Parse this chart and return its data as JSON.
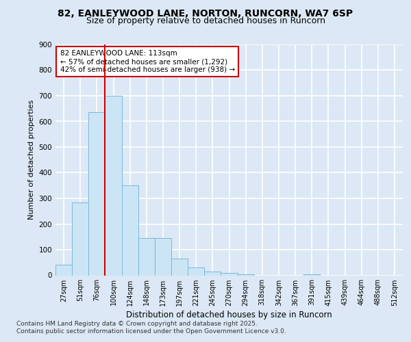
{
  "title_line1": "82, EANLEYWOOD LANE, NORTON, RUNCORN, WA7 6SP",
  "title_line2": "Size of property relative to detached houses in Runcorn",
  "xlabel": "Distribution of detached houses by size in Runcorn",
  "ylabel": "Number of detached properties",
  "categories": [
    "27sqm",
    "51sqm",
    "76sqm",
    "100sqm",
    "124sqm",
    "148sqm",
    "173sqm",
    "197sqm",
    "221sqm",
    "245sqm",
    "270sqm",
    "294sqm",
    "318sqm",
    "342sqm",
    "367sqm",
    "391sqm",
    "415sqm",
    "439sqm",
    "464sqm",
    "488sqm",
    "512sqm"
  ],
  "values": [
    42,
    285,
    635,
    700,
    350,
    145,
    145,
    65,
    30,
    15,
    10,
    5,
    0,
    0,
    0,
    5,
    0,
    0,
    0,
    0,
    0
  ],
  "bar_color": "#cce5f5",
  "bar_edge_color": "#7ab8d9",
  "vline_color": "#cc0000",
  "annotation_text": "82 EANLEYWOOD LANE: 113sqm\n← 57% of detached houses are smaller (1,292)\n42% of semi-detached houses are larger (938) →",
  "annotation_box_color": "#ffffff",
  "annotation_box_edge": "#cc0000",
  "bg_color": "#dce8f5",
  "plot_bg_color": "#dce8f5",
  "grid_color": "#ffffff",
  "footer_line1": "Contains HM Land Registry data © Crown copyright and database right 2025.",
  "footer_line2": "Contains public sector information licensed under the Open Government Licence v3.0.",
  "ylim": [
    0,
    900
  ],
  "yticks": [
    0,
    100,
    200,
    300,
    400,
    500,
    600,
    700,
    800,
    900
  ]
}
